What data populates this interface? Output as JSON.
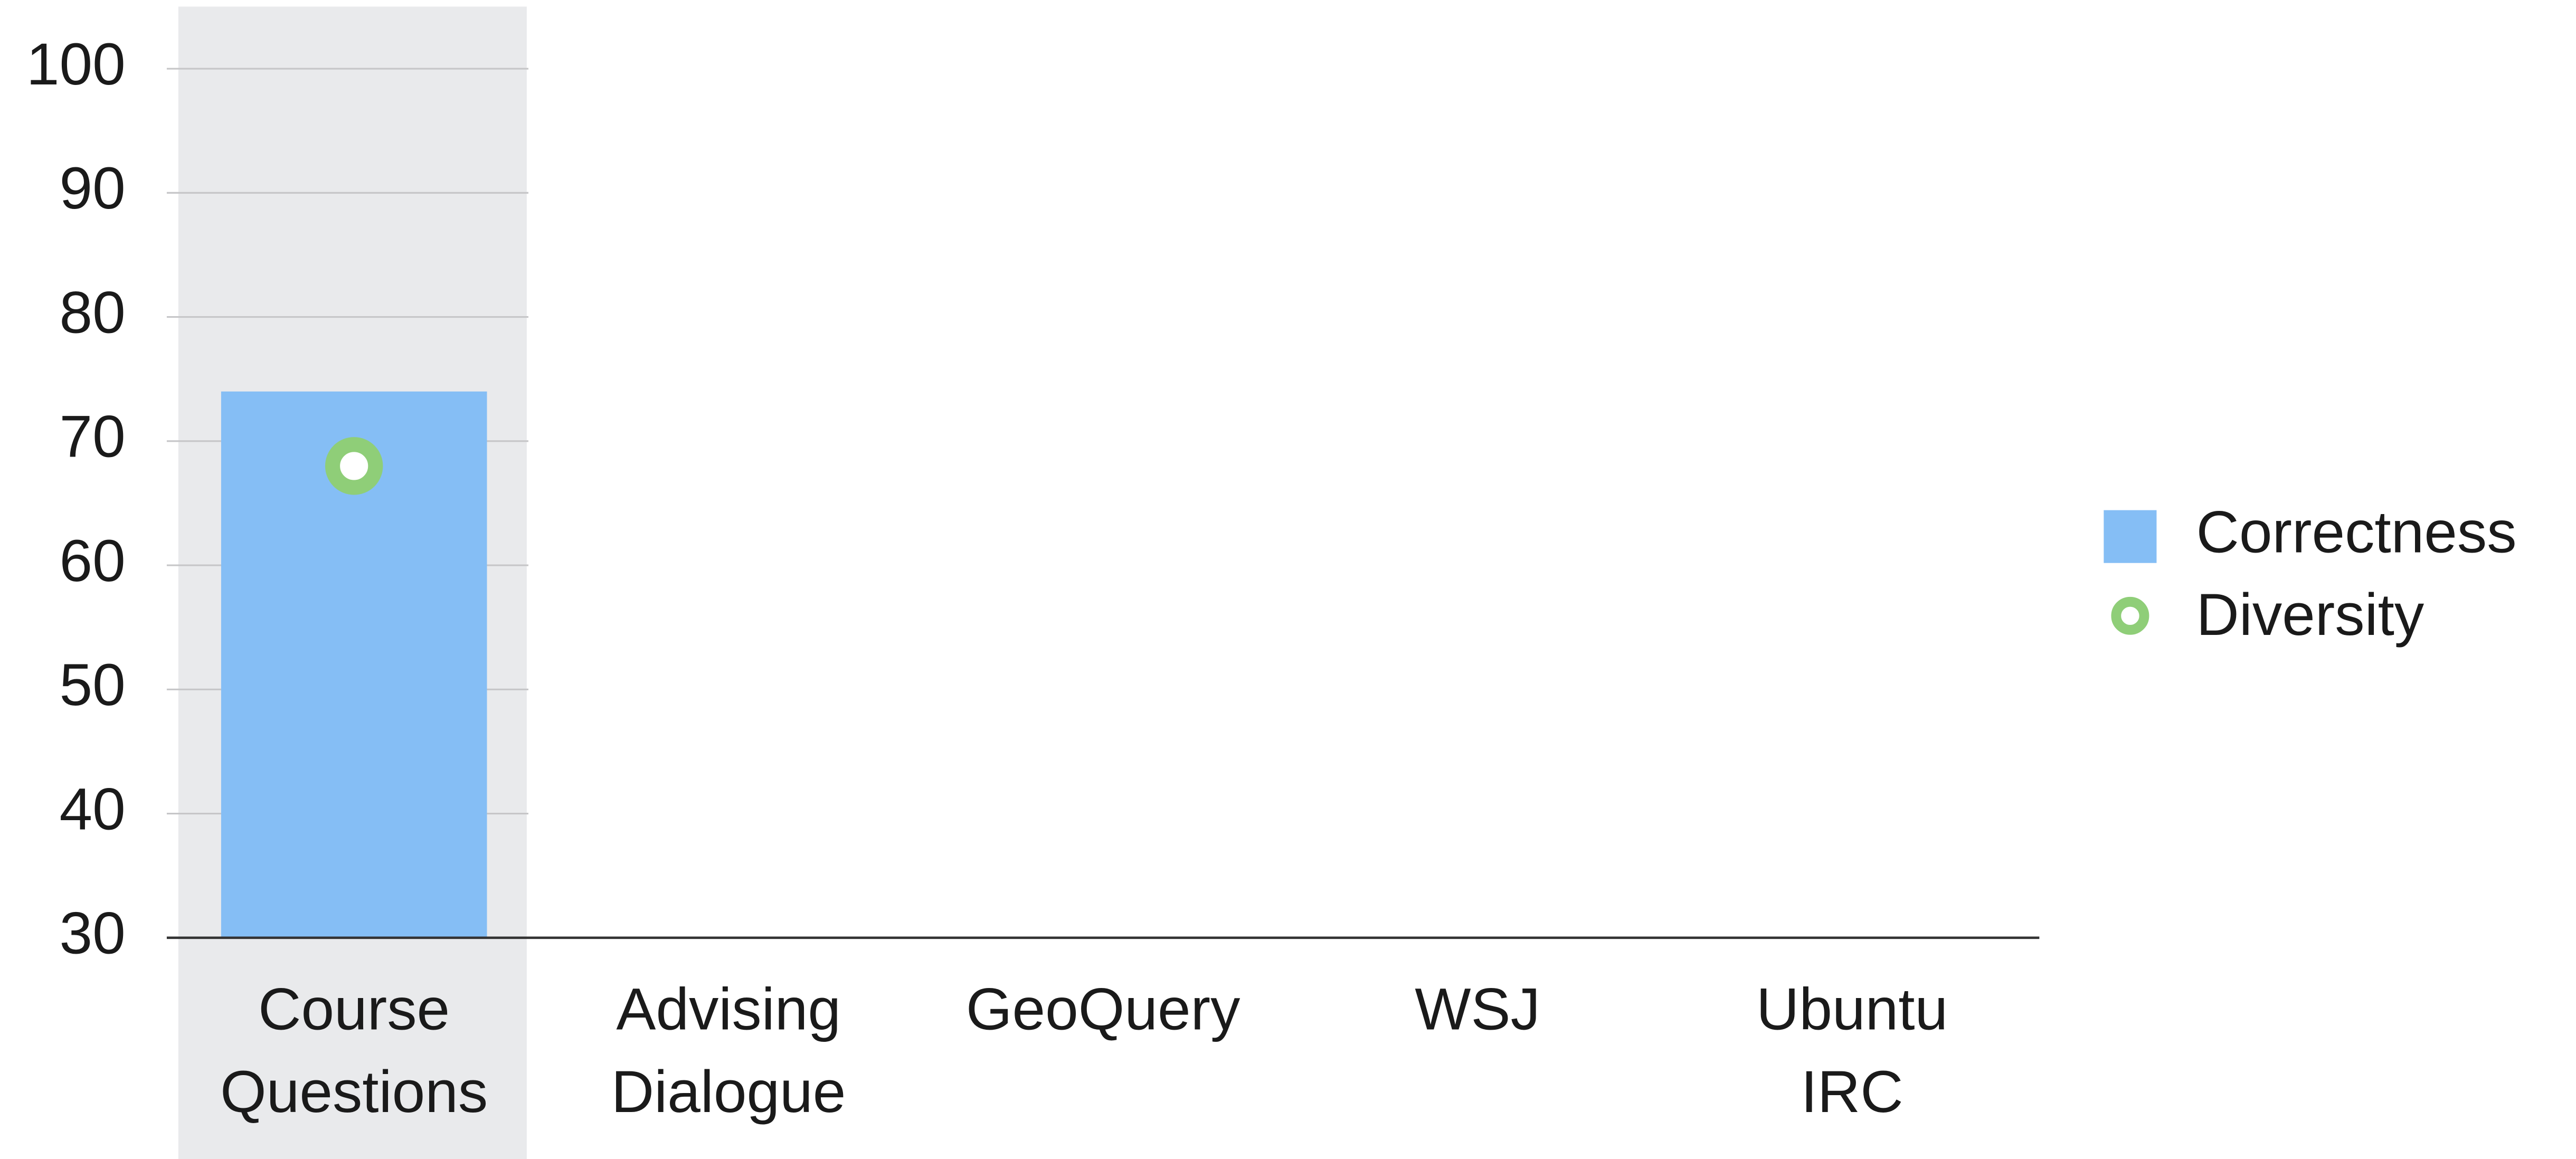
{
  "chart_data": {
    "type": "bar",
    "categories": [
      [
        "Course",
        "Questions"
      ],
      [
        "Advising",
        "Dialogue"
      ],
      [
        "GeoQuery"
      ],
      [
        "WSJ"
      ],
      [
        "Ubuntu",
        "IRC"
      ]
    ],
    "series": [
      {
        "name": "Correctness",
        "color": "#85bef5",
        "values": [
          74,
          null,
          null,
          null,
          null
        ]
      },
      {
        "name": "Diversity",
        "color": "#8fce78",
        "values": [
          68,
          null,
          null,
          null,
          null
        ],
        "marker": "ring"
      }
    ],
    "ylim": [
      30,
      105
    ],
    "yticks": [
      30,
      40,
      50,
      60,
      70,
      80,
      90,
      100
    ],
    "grid": true,
    "legend": "right"
  }
}
